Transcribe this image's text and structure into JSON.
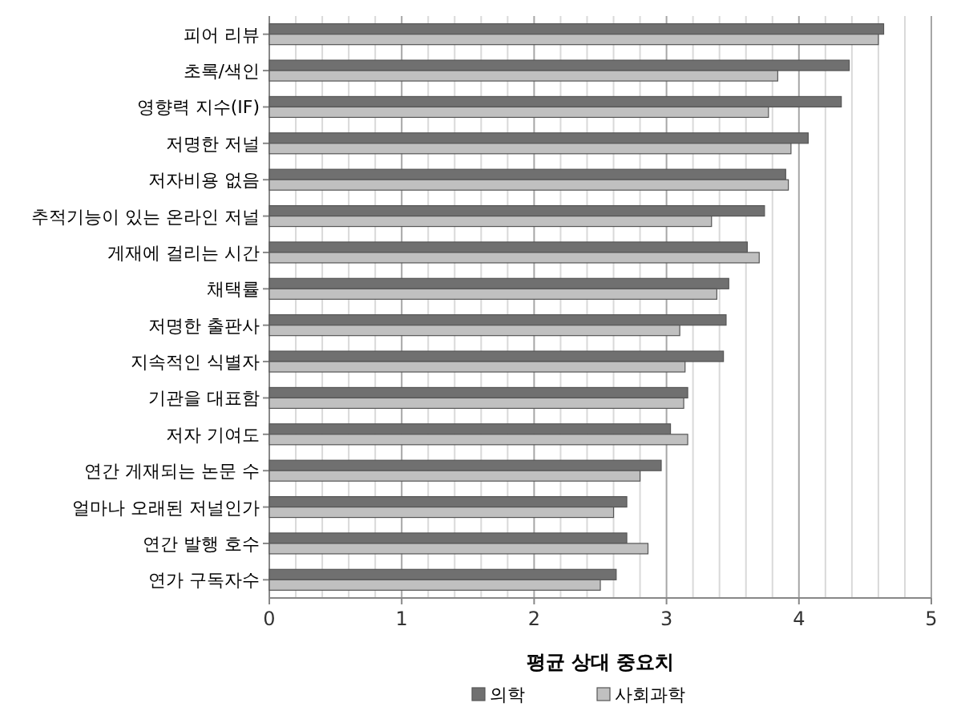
{
  "chart_data": {
    "type": "bar",
    "orientation": "horizontal",
    "xlabel": "평균 상대 중요치",
    "categories": [
      "피어 리뷰",
      "초록/색인",
      "영향력 지수(IF)",
      "저명한 저널",
      "저자비용 없음",
      "추적기능이 있는 온라인 저널",
      "게재에 걸리는 시간",
      "채택률",
      "저명한 출판사",
      "지속적인 식별자",
      "기관을 대표함",
      "저자 기여도",
      "연간 게재되는 논문 수",
      "얼마나 오래된 저널인가",
      "연간 발행 호수",
      "연가 구독자수"
    ],
    "series": [
      {
        "name": "의학",
        "color": "#707070",
        "values": [
          4.64,
          4.38,
          4.32,
          4.07,
          3.9,
          3.74,
          3.61,
          3.47,
          3.45,
          3.43,
          3.16,
          3.03,
          2.96,
          2.7,
          2.7,
          2.62
        ]
      },
      {
        "name": "사회과학",
        "color": "#c0c0c0",
        "values": [
          4.6,
          3.84,
          3.77,
          3.94,
          3.92,
          3.34,
          3.7,
          3.38,
          3.1,
          3.14,
          3.13,
          3.16,
          2.8,
          2.6,
          2.86,
          2.5
        ]
      }
    ],
    "xlim": [
      0,
      5
    ],
    "xticks": [
      0,
      {
        "value": 0.2,
        "label": null
      },
      {
        "value": 0.4,
        "label": null
      },
      {
        "value": 0.6,
        "label": null
      },
      {
        "value": 0.8,
        "label": null
      },
      1,
      {
        "value": 1.2,
        "label": null
      },
      {
        "value": 1.4,
        "label": null
      },
      {
        "value": 1.6,
        "label": null
      },
      {
        "value": 1.8,
        "label": null
      },
      2,
      {
        "value": 2.2,
        "label": null
      },
      {
        "value": 2.4,
        "label": null
      },
      {
        "value": 2.6,
        "label": null
      },
      {
        "value": 2.8,
        "label": null
      },
      3,
      {
        "value": 3.2,
        "label": null
      },
      {
        "value": 3.4,
        "label": null
      },
      {
        "value": 3.6,
        "label": null
      },
      {
        "value": 3.8,
        "label": null
      },
      4,
      {
        "value": 4.2,
        "label": null
      },
      {
        "value": 4.4,
        "label": null
      },
      {
        "value": 4.6,
        "label": null
      },
      {
        "value": 4.8,
        "label": null
      },
      5
    ],
    "grid": "x",
    "legend": "bottom"
  }
}
